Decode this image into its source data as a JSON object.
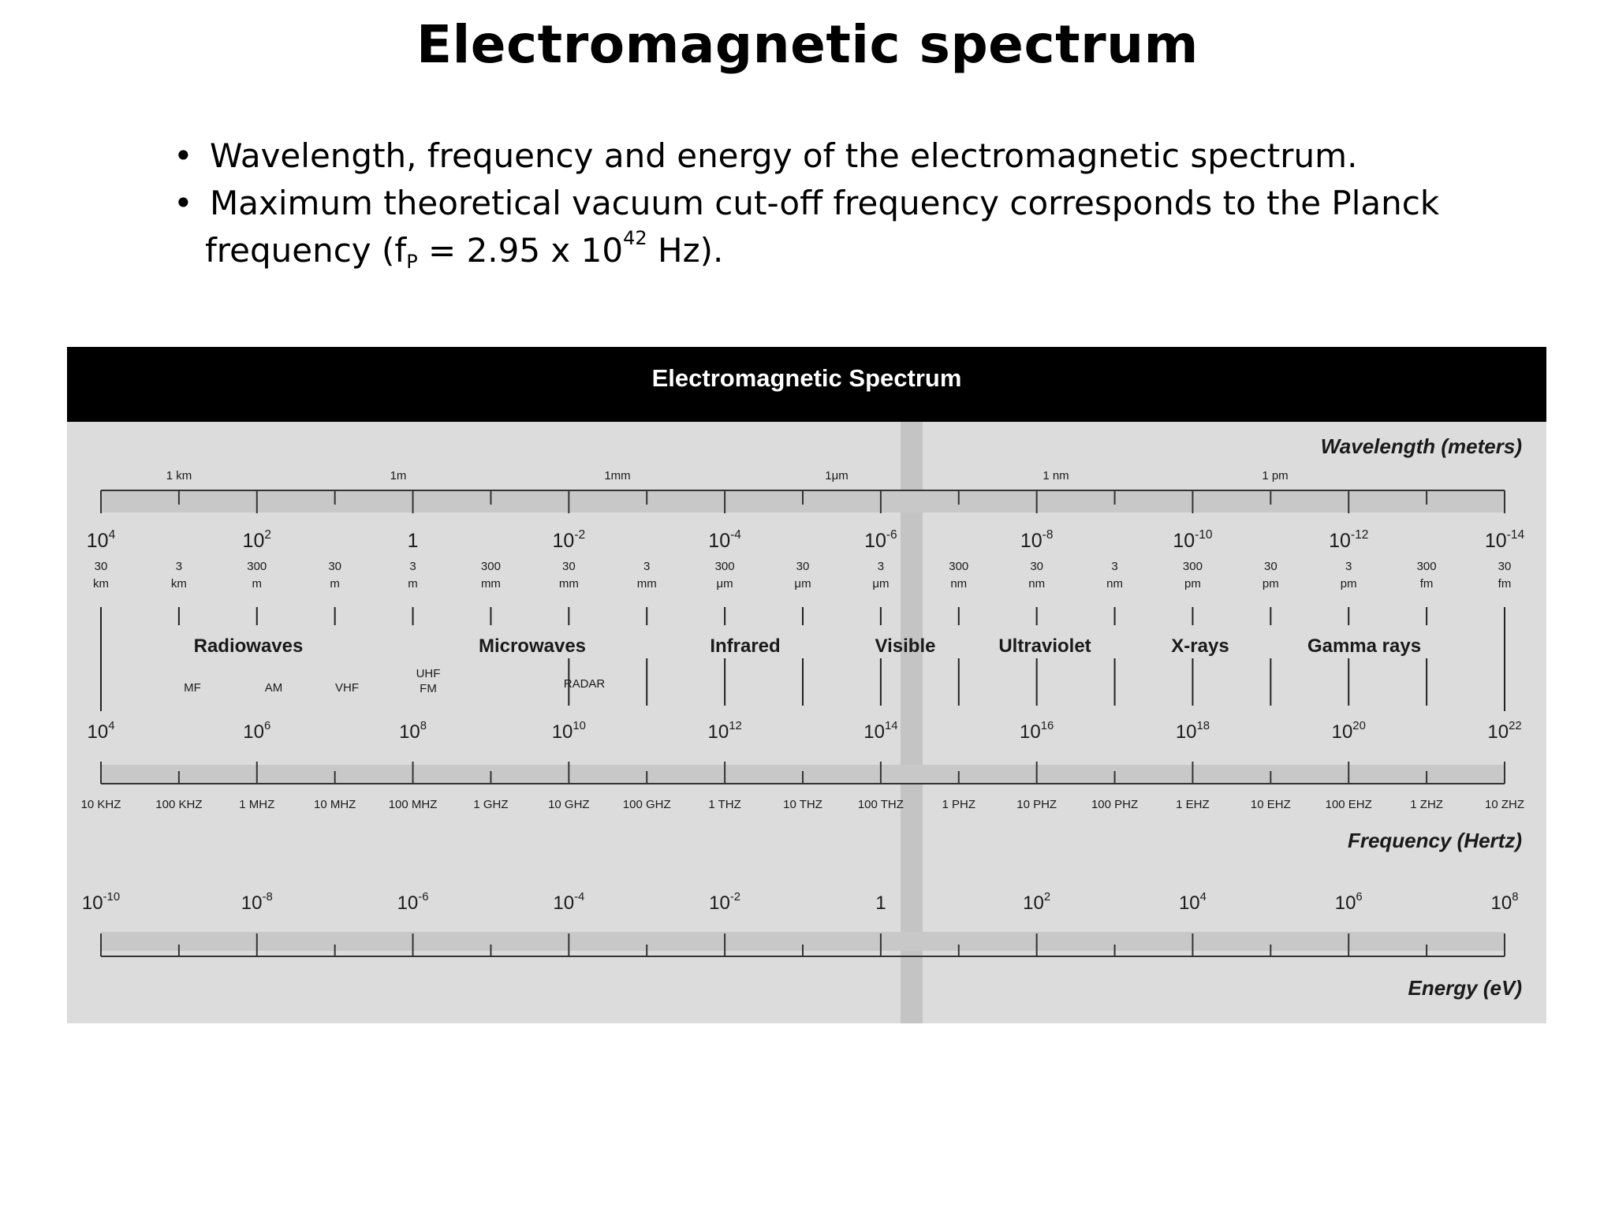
{
  "slide": {
    "title": "Electromagnetic spectrum",
    "bullet_symbol": "•",
    "bullet1": "Wavelength, frequency and energy of the electromagnetic spectrum.",
    "bullet2_line1": "Maximum theoretical vacuum cut-off frequency corresponds to the Planck",
    "bullet2_line2_prefix": "frequency (f",
    "bullet2_sub": "P",
    "bullet2_mid": " = 2.95 x 10",
    "bullet2_sup": "42",
    "bullet2_suffix": " Hz)."
  },
  "figure": {
    "title": "Electromagnetic Spectrum",
    "wavelength_axis_title": "Wavelength (meters)",
    "frequency_axis_title": "Frequency (Hertz)",
    "energy_axis_title": "Energy (eV)",
    "wavelength_unit_labels": [
      "1 km",
      "1m",
      "1mm",
      "1μm",
      "1 nm",
      "1 pm"
    ],
    "wavelength_powers": [
      {
        "base": "10",
        "exp": "4"
      },
      {
        "base": "10",
        "exp": "2"
      },
      {
        "base": "1",
        "exp": ""
      },
      {
        "base": "10",
        "exp": "-2"
      },
      {
        "base": "10",
        "exp": "-4"
      },
      {
        "base": "10",
        "exp": "-6"
      },
      {
        "base": "10",
        "exp": "-8"
      },
      {
        "base": "10",
        "exp": "-10"
      },
      {
        "base": "10",
        "exp": "-12"
      },
      {
        "base": "10",
        "exp": "-14"
      }
    ],
    "wavelength_values": [
      {
        "num": "30",
        "unit": "km"
      },
      {
        "num": "3",
        "unit": "km"
      },
      {
        "num": "300",
        "unit": "m"
      },
      {
        "num": "30",
        "unit": "m"
      },
      {
        "num": "3",
        "unit": "m"
      },
      {
        "num": "300",
        "unit": "mm"
      },
      {
        "num": "30",
        "unit": "mm"
      },
      {
        "num": "3",
        "unit": "mm"
      },
      {
        "num": "300",
        "unit": "μm"
      },
      {
        "num": "30",
        "unit": "μm"
      },
      {
        "num": "3",
        "unit": "μm"
      },
      {
        "num": "300",
        "unit": "nm"
      },
      {
        "num": "30",
        "unit": "nm"
      },
      {
        "num": "3",
        "unit": "nm"
      },
      {
        "num": "300",
        "unit": "pm"
      },
      {
        "num": "30",
        "unit": "pm"
      },
      {
        "num": "3",
        "unit": "pm"
      },
      {
        "num": "300",
        "unit": "fm"
      },
      {
        "num": "30",
        "unit": "fm"
      }
    ],
    "bands": [
      "Radiowaves",
      "Microwaves",
      "Infrared",
      "Visible",
      "Ultraviolet",
      "X-rays",
      "Gamma rays"
    ],
    "sub_bands": [
      "MF",
      "AM",
      "VHF",
      "UHF",
      "FM",
      "RADAR"
    ],
    "frequency_powers": [
      {
        "base": "10",
        "exp": "4"
      },
      {
        "base": "10",
        "exp": "6"
      },
      {
        "base": "10",
        "exp": "8"
      },
      {
        "base": "10",
        "exp": "10"
      },
      {
        "base": "10",
        "exp": "12"
      },
      {
        "base": "10",
        "exp": "14"
      },
      {
        "base": "10",
        "exp": "16"
      },
      {
        "base": "10",
        "exp": "18"
      },
      {
        "base": "10",
        "exp": "20"
      },
      {
        "base": "10",
        "exp": "22"
      }
    ],
    "frequency_labels": [
      "10 KHZ",
      "100 KHZ",
      "1 MHZ",
      "10 MHZ",
      "100 MHZ",
      "1 GHZ",
      "10 GHZ",
      "100 GHZ",
      "1 THZ",
      "10 THZ",
      "100 THZ",
      "1 PHZ",
      "10 PHZ",
      "100 PHZ",
      "1 EHZ",
      "10 EHZ",
      "100 EHZ",
      "1 ZHZ",
      "10 ZHZ"
    ],
    "energy_powers": [
      {
        "base": "10",
        "exp": "-10"
      },
      {
        "base": "10",
        "exp": "-8"
      },
      {
        "base": "10",
        "exp": "-6"
      },
      {
        "base": "10",
        "exp": "-4"
      },
      {
        "base": "10",
        "exp": "-2"
      },
      {
        "base": "1",
        "exp": ""
      },
      {
        "base": "10",
        "exp": "2"
      },
      {
        "base": "10",
        "exp": "4"
      },
      {
        "base": "10",
        "exp": "6"
      },
      {
        "base": "10",
        "exp": "8"
      }
    ],
    "colors": {
      "panel": "#dcdcdc",
      "header": "#000000",
      "scale_bar": "#c8c8c8",
      "visible_band": "#c4c4c4",
      "ink": "#1a1a1a"
    }
  }
}
